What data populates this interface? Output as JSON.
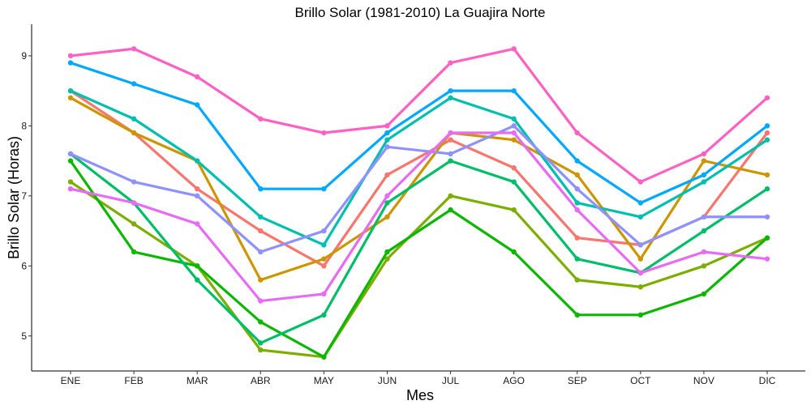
{
  "chart_data": {
    "type": "line",
    "title": "Brillo Solar (1981-2010)  La Guajira Norte",
    "xlabel": "Mes",
    "ylabel": "Brillo Solar (Horas)",
    "categories": [
      "ENE",
      "FEB",
      "MAR",
      "ABR",
      "MAY",
      "JUN",
      "JUL",
      "AGO",
      "SEP",
      "OCT",
      "NOV",
      "DIC"
    ],
    "ylim": [
      4.5,
      9.45
    ],
    "yticks": [
      5,
      6,
      7,
      8,
      9
    ],
    "grid": false,
    "legend": "none",
    "series": [
      {
        "color": "#F8766D",
        "values": [
          8.5,
          7.9,
          7.1,
          6.5,
          6.0,
          7.3,
          7.8,
          7.4,
          6.4,
          6.3,
          6.7,
          7.9
        ]
      },
      {
        "color": "#CD9600",
        "values": [
          8.4,
          7.9,
          7.5,
          5.8,
          6.1,
          6.7,
          7.9,
          7.8,
          7.3,
          6.1,
          7.5,
          7.3
        ]
      },
      {
        "color": "#7CAE00",
        "values": [
          7.2,
          6.6,
          6.0,
          4.8,
          4.7,
          6.1,
          7.0,
          6.8,
          5.8,
          5.7,
          6.0,
          6.4
        ]
      },
      {
        "color": "#0CB702",
        "values": [
          7.5,
          6.2,
          6.0,
          5.2,
          4.7,
          6.2,
          6.8,
          6.2,
          5.3,
          5.3,
          5.6,
          6.4
        ]
      },
      {
        "color": "#00BE67",
        "values": [
          7.6,
          6.9,
          5.8,
          4.9,
          5.3,
          6.9,
          7.5,
          7.2,
          6.1,
          5.9,
          6.5,
          7.1
        ]
      },
      {
        "color": "#00BFAF",
        "values": [
          8.5,
          8.1,
          7.5,
          6.7,
          6.3,
          7.8,
          8.4,
          8.1,
          6.9,
          6.7,
          7.2,
          7.8
        ]
      },
      {
        "color": "#00A9FF",
        "values": [
          8.9,
          8.6,
          8.3,
          7.1,
          7.1,
          7.9,
          8.5,
          8.5,
          7.5,
          6.9,
          7.3,
          8.0
        ]
      },
      {
        "color": "#8E91FF",
        "values": [
          7.6,
          7.2,
          7.0,
          6.2,
          6.5,
          7.7,
          7.6,
          8.0,
          7.1,
          6.3,
          6.7,
          6.7
        ]
      },
      {
        "color": "#E76BF3",
        "values": [
          7.1,
          6.9,
          6.6,
          5.5,
          5.6,
          7.0,
          7.9,
          7.9,
          6.8,
          5.9,
          6.2,
          6.1
        ]
      },
      {
        "color": "#FF61C3",
        "values": [
          9.0,
          9.1,
          8.7,
          8.1,
          7.9,
          8.0,
          8.9,
          9.1,
          7.9,
          7.2,
          7.6,
          8.4
        ]
      }
    ]
  }
}
